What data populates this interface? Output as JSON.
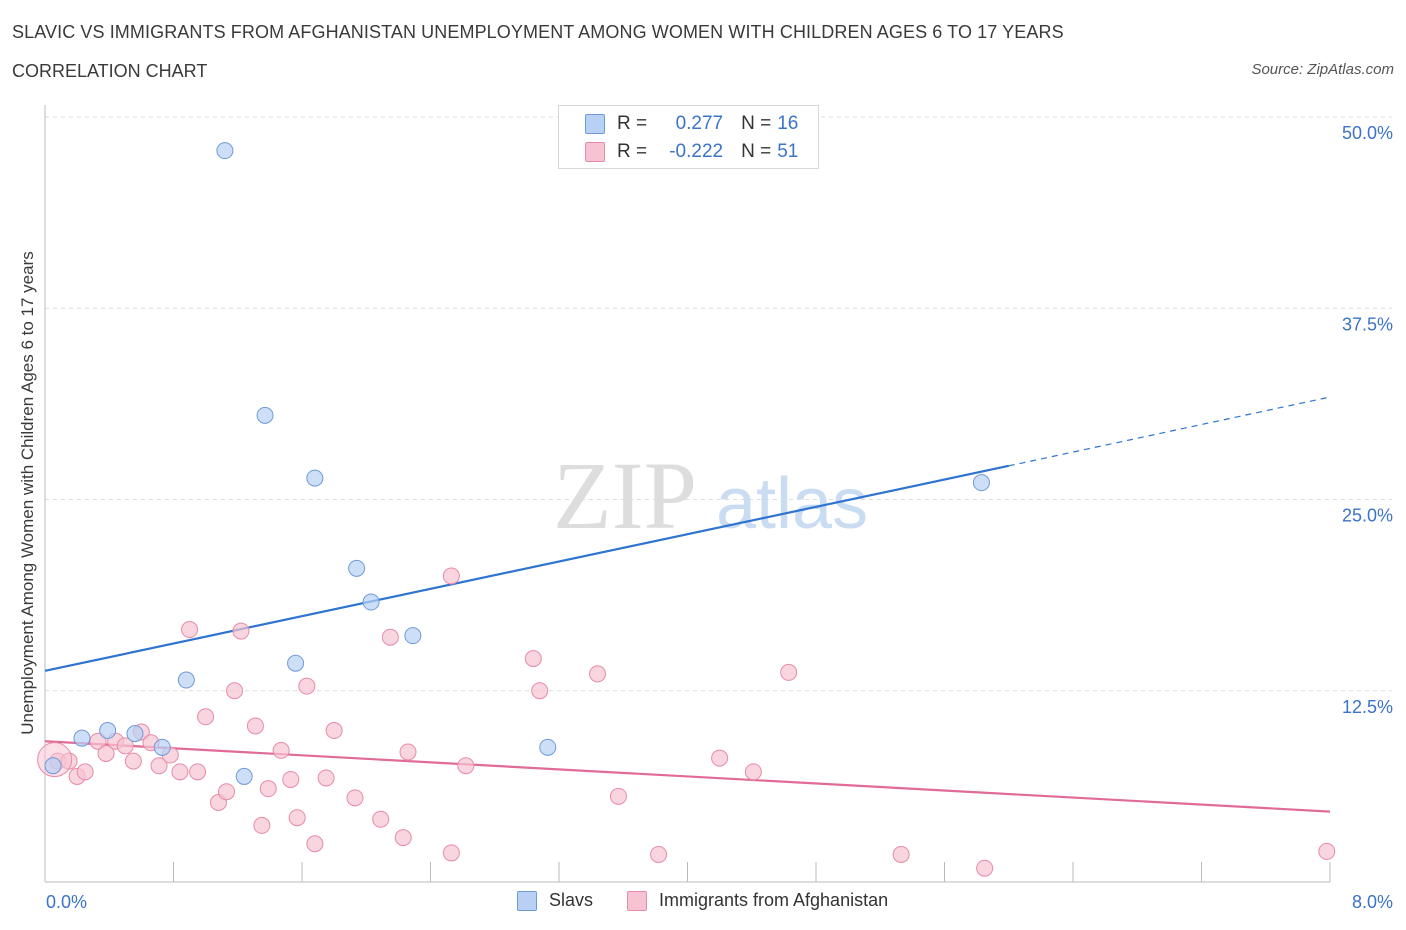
{
  "header": {
    "title": "SLAVIC VS IMMIGRANTS FROM AFGHANISTAN UNEMPLOYMENT AMONG WOMEN WITH CHILDREN AGES 6 TO 17 YEARS",
    "subtitle": "CORRELATION CHART",
    "source": "Source: ZipAtlas.com"
  },
  "watermark": {
    "zip": "ZIP",
    "atlas": "atlas"
  },
  "colors": {
    "slavs_fill": "#b8d0f3",
    "slavs_stroke": "#6f9ad8",
    "slavs_line": "#2e74d0",
    "afg_fill": "#f7c3d2",
    "afg_stroke": "#e88aa8",
    "afg_line": "#e06b97",
    "tick_label": "#3b73c9",
    "grid": "#dcdcdc"
  },
  "stats_legend": {
    "rows": [
      {
        "r_label": "R =",
        "r_value": "0.277",
        "n_label": "N =",
        "n_value": "16"
      },
      {
        "r_label": "R =",
        "r_value": "-0.222",
        "n_label": "N =",
        "n_value": "51"
      }
    ]
  },
  "chart_data": {
    "type": "scatter",
    "title": "SLAVIC VS IMMIGRANTS FROM AFGHANISTAN UNEMPLOYMENT AMONG WOMEN WITH CHILDREN AGES 6 TO 17 YEARS",
    "xlabel": "",
    "ylabel": "Unemployment Among Women with Children Ages 6 to 17 years",
    "xlim": [
      0,
      8
    ],
    "ylim": [
      0,
      50
    ],
    "x_tick_labels": [
      "0.0%",
      "8.0%"
    ],
    "y_ticks": [
      12.5,
      25.0,
      37.5,
      50.0
    ],
    "y_tick_labels": [
      "12.5%",
      "25.0%",
      "37.5%",
      "50.0%"
    ],
    "grid": true,
    "legend_position": "bottom",
    "series": [
      {
        "name": "Slavs",
        "points": [
          [
            0.05,
            7.6
          ],
          [
            0.23,
            9.4
          ],
          [
            0.39,
            9.9
          ],
          [
            0.56,
            9.7
          ],
          [
            0.73,
            8.8
          ],
          [
            0.88,
            13.2
          ],
          [
            1.12,
            47.8
          ],
          [
            1.24,
            6.9
          ],
          [
            1.37,
            30.5
          ],
          [
            1.56,
            14.3
          ],
          [
            1.68,
            26.4
          ],
          [
            1.94,
            20.5
          ],
          [
            2.03,
            18.3
          ],
          [
            2.29,
            16.1
          ],
          [
            3.13,
            8.8
          ],
          [
            5.83,
            26.1
          ]
        ],
        "trend": {
          "x0": 0.0,
          "y0": 13.8,
          "x1": 6.0,
          "y1": 27.2,
          "dashed_to_x": 8.0,
          "dashed_to_y": 31.7
        }
      },
      {
        "name": "Immigrants from Afghanistan",
        "points": [
          [
            0.08,
            7.9
          ],
          [
            0.15,
            7.9
          ],
          [
            0.2,
            6.9
          ],
          [
            0.25,
            7.2
          ],
          [
            0.33,
            9.2
          ],
          [
            0.38,
            8.4
          ],
          [
            0.44,
            9.2
          ],
          [
            0.5,
            8.9
          ],
          [
            0.55,
            7.9
          ],
          [
            0.6,
            9.8
          ],
          [
            0.66,
            9.1
          ],
          [
            0.71,
            7.6
          ],
          [
            0.78,
            8.3
          ],
          [
            0.84,
            7.2
          ],
          [
            0.9,
            16.5
          ],
          [
            0.95,
            7.2
          ],
          [
            1.0,
            10.8
          ],
          [
            1.08,
            5.2
          ],
          [
            1.13,
            5.9
          ],
          [
            1.18,
            12.5
          ],
          [
            1.22,
            16.4
          ],
          [
            1.31,
            10.2
          ],
          [
            1.35,
            3.7
          ],
          [
            1.39,
            6.1
          ],
          [
            1.47,
            8.6
          ],
          [
            1.53,
            6.7
          ],
          [
            1.57,
            4.2
          ],
          [
            1.63,
            12.8
          ],
          [
            1.68,
            2.5
          ],
          [
            1.75,
            6.8
          ],
          [
            1.8,
            9.9
          ],
          [
            1.93,
            5.5
          ],
          [
            2.09,
            4.1
          ],
          [
            2.15,
            16.0
          ],
          [
            2.23,
            2.9
          ],
          [
            2.26,
            8.5
          ],
          [
            2.53,
            1.9
          ],
          [
            2.53,
            20.0
          ],
          [
            2.62,
            7.6
          ],
          [
            3.04,
            14.6
          ],
          [
            3.08,
            12.5
          ],
          [
            3.44,
            13.6
          ],
          [
            3.57,
            5.6
          ],
          [
            3.82,
            1.8
          ],
          [
            4.2,
            8.1
          ],
          [
            4.41,
            7.2
          ],
          [
            4.63,
            13.7
          ],
          [
            5.33,
            1.8
          ],
          [
            5.85,
            0.9
          ],
          [
            7.98,
            2.0
          ],
          [
            0.06,
            8.0
          ]
        ],
        "trend": {
          "x0": 0.0,
          "y0": 9.2,
          "x1": 8.0,
          "y1": 4.6
        }
      }
    ]
  }
}
